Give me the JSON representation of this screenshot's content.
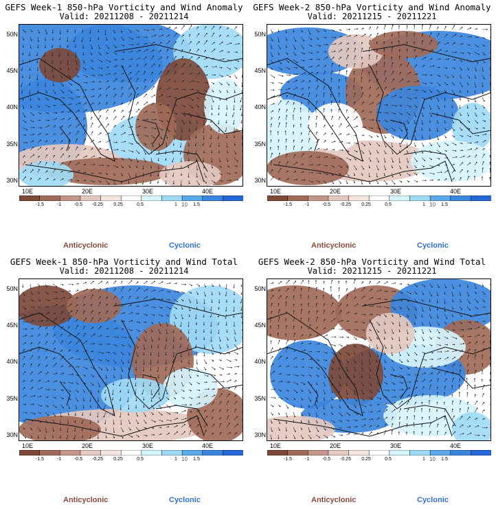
{
  "panels": [
    {
      "title": "GEFS Week-1 850-hPa Vorticity and Wind Anomaly",
      "valid": "Valid: 20211208 - 20211214"
    },
    {
      "title": "GEFS Week-2 850-hPa Vorticity and Wind Anomaly",
      "valid": "Valid: 20211215 - 20211221"
    },
    {
      "title": "GEFS Week-1 850-hPa Vorticity and Wind Total",
      "valid": "Valid: 20211208 - 20211214"
    },
    {
      "title": "GEFS Week-2 850-hPa Vorticity and Wind Total",
      "valid": "Valid: 20211215 - 20211221"
    }
  ],
  "lat_labels": [
    "50N",
    "45N",
    "40N",
    "35N",
    "30N"
  ],
  "lon_labels": [
    "10E",
    "20E",
    "30E",
    "40E"
  ],
  "colorbar": {
    "labels": [
      "-1.5",
      "-1",
      "-0.5",
      "-0.25",
      "0.25",
      "0.5",
      "1",
      "1.5"
    ],
    "center_label": "10",
    "colors": [
      "#7d4a3a",
      "#a06a58",
      "#c4968a",
      "#e3c8bf",
      "#f4e6e1",
      "#ffffff",
      "#d6f4fb",
      "#9fdaf5",
      "#5ba9e8",
      "#3b86dd",
      "#2567d6"
    ]
  },
  "legend": {
    "anticyclonic": "Anticyclonic",
    "cyclonic": "Cyclonic"
  },
  "colors": {
    "brown": "#8b4a3a",
    "blue": "#2f6fd6"
  }
}
